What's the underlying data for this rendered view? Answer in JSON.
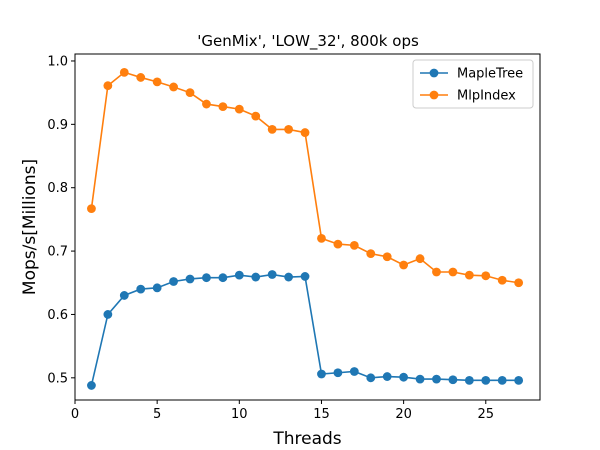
{
  "chart_data": {
    "type": "line",
    "title": "'GenMix', 'LOW_32', 800k ops",
    "xlabel": "Threads",
    "ylabel": "Mops/s[Millions]",
    "xlim": [
      0,
      28.3
    ],
    "ylim": [
      0.465,
      1.011
    ],
    "xticks": [
      0,
      5,
      10,
      15,
      20,
      25
    ],
    "yticks": [
      0.5,
      0.6,
      0.7,
      0.8,
      0.9,
      1.0
    ],
    "ytick_labels": [
      "0.5",
      "0.6",
      "0.7",
      "0.8",
      "0.9",
      "1.0"
    ],
    "grid": false,
    "legend_position": "top-right",
    "x": [
      1,
      2,
      3,
      4,
      5,
      6,
      7,
      8,
      9,
      10,
      11,
      12,
      13,
      14,
      15,
      16,
      17,
      18,
      19,
      20,
      21,
      22,
      23,
      24,
      25,
      26,
      27
    ],
    "series": [
      {
        "name": "MapleTree",
        "color": "#1f77b4",
        "values": [
          0.488,
          0.6,
          0.63,
          0.64,
          0.642,
          0.652,
          0.656,
          0.658,
          0.658,
          0.662,
          0.659,
          0.663,
          0.659,
          0.66,
          0.506,
          0.508,
          0.51,
          0.5,
          0.502,
          0.501,
          0.498,
          0.498,
          0.497,
          0.496,
          0.496,
          0.496,
          0.496
        ]
      },
      {
        "name": "MlpIndex",
        "color": "#ff7f0e",
        "values": [
          0.767,
          0.961,
          0.982,
          0.974,
          0.967,
          0.959,
          0.95,
          0.932,
          0.928,
          0.924,
          0.913,
          0.892,
          0.892,
          0.887,
          0.72,
          0.711,
          0.709,
          0.696,
          0.691,
          0.678,
          0.688,
          0.667,
          0.667,
          0.662,
          0.661,
          0.654,
          0.65
        ]
      }
    ]
  }
}
